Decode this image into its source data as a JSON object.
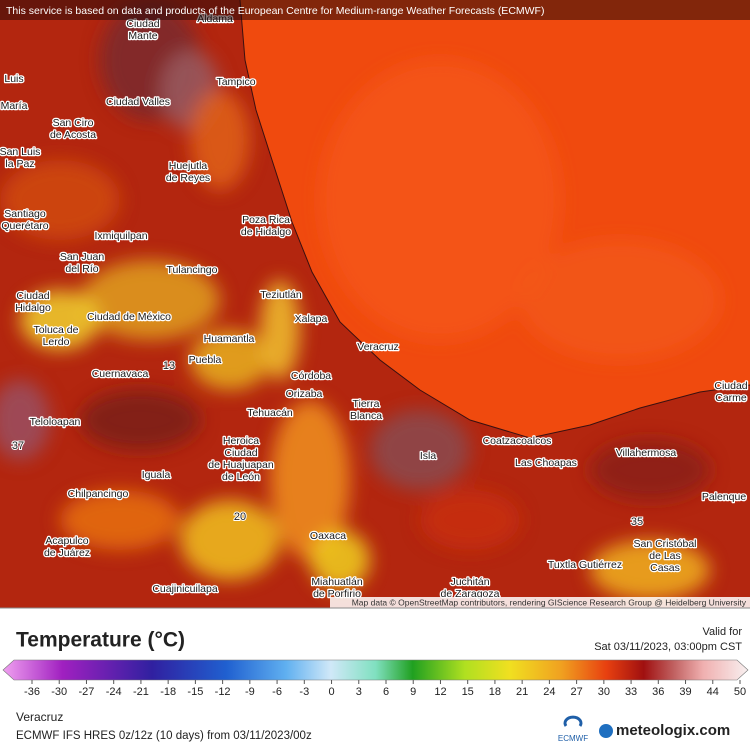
{
  "header": {
    "notice": "This service is based on data and products of the European Centre for Medium-range Weather Forecasts (ECMWF)"
  },
  "map": {
    "places": [
      [
        "Aldama"
      ],
      [
        "Ciudad",
        "Mante"
      ],
      [
        "Tampico"
      ],
      [
        "Ciudad Valles"
      ],
      [
        "San Ciro",
        "de Acosta"
      ],
      [
        "Huejutla",
        "de Reyes"
      ],
      [
        "Luis"
      ],
      [
        "María"
      ],
      [
        "San Luis",
        "la Paz"
      ],
      [
        "Santiago",
        "Querétaro"
      ],
      [
        "Poza Rica",
        "de Hidalgo"
      ],
      [
        "Ixmiquilpan"
      ],
      [
        "San Juan",
        "del Río"
      ],
      [
        "Tulancingo"
      ],
      [
        "Teziutlán"
      ],
      [
        "Ciudad",
        "Hidalgo"
      ],
      [
        "Xalapa"
      ],
      [
        "Ciudad de México"
      ],
      [
        "Toluca de",
        "Lerdo"
      ],
      [
        "Huamantla"
      ],
      [
        "Veracruz"
      ],
      [
        "Puebla"
      ],
      [
        "Cuernavaca"
      ],
      [
        "Córdoba"
      ],
      [
        "Orizaba"
      ],
      [
        "Tierra",
        "Blanca"
      ],
      [
        "Tehuacán"
      ],
      [
        "Teloloapan"
      ],
      [
        "Heroica",
        "Ciudad",
        "de Huajuapan",
        "de León"
      ],
      [
        "Coatzacoalcos"
      ],
      [
        "Ciudad",
        "Carme"
      ],
      [
        "Isla"
      ],
      [
        "Las Choapas"
      ],
      [
        "Villahermosa"
      ],
      [
        "Iguala"
      ],
      [
        "Chilpancingo"
      ],
      [
        "Palenque"
      ],
      [
        "Oaxaca"
      ],
      [
        "Acapulco",
        "de Juárez"
      ],
      [
        "San Cristóbal",
        "de Las",
        "Casas"
      ],
      [
        "Tuxtla Gutiérrez"
      ],
      [
        "Miahuatlán",
        "de Porfirio"
      ],
      [
        "Juchitán",
        "de Zaragoza"
      ],
      [
        "Cuajinicuilapa"
      ]
    ],
    "temperatures": [
      13,
      37,
      20,
      35
    ],
    "attribution": "Map data © OpenStreetMap contributors, rendering GIScience Research Group @ Heidelberg University"
  },
  "legend": {
    "title": "Temperature (°C)",
    "valid_label": "Valid for",
    "valid_time": "Sat 03/11/2023, 03:00pm CST",
    "ticks": [
      -36,
      -30,
      -27,
      -24,
      -21,
      -18,
      -15,
      -12,
      -9,
      -6,
      -3,
      0,
      3,
      6,
      9,
      12,
      15,
      18,
      21,
      24,
      27,
      30,
      33,
      36,
      39,
      44,
      50
    ]
  },
  "footer": {
    "location": "Veracruz",
    "model": "ECMWF IFS HRES 0z/12z (10 days) from 03/11/2023/00z",
    "ecmwf": "ECMWF",
    "brand": "meteologix.com"
  }
}
